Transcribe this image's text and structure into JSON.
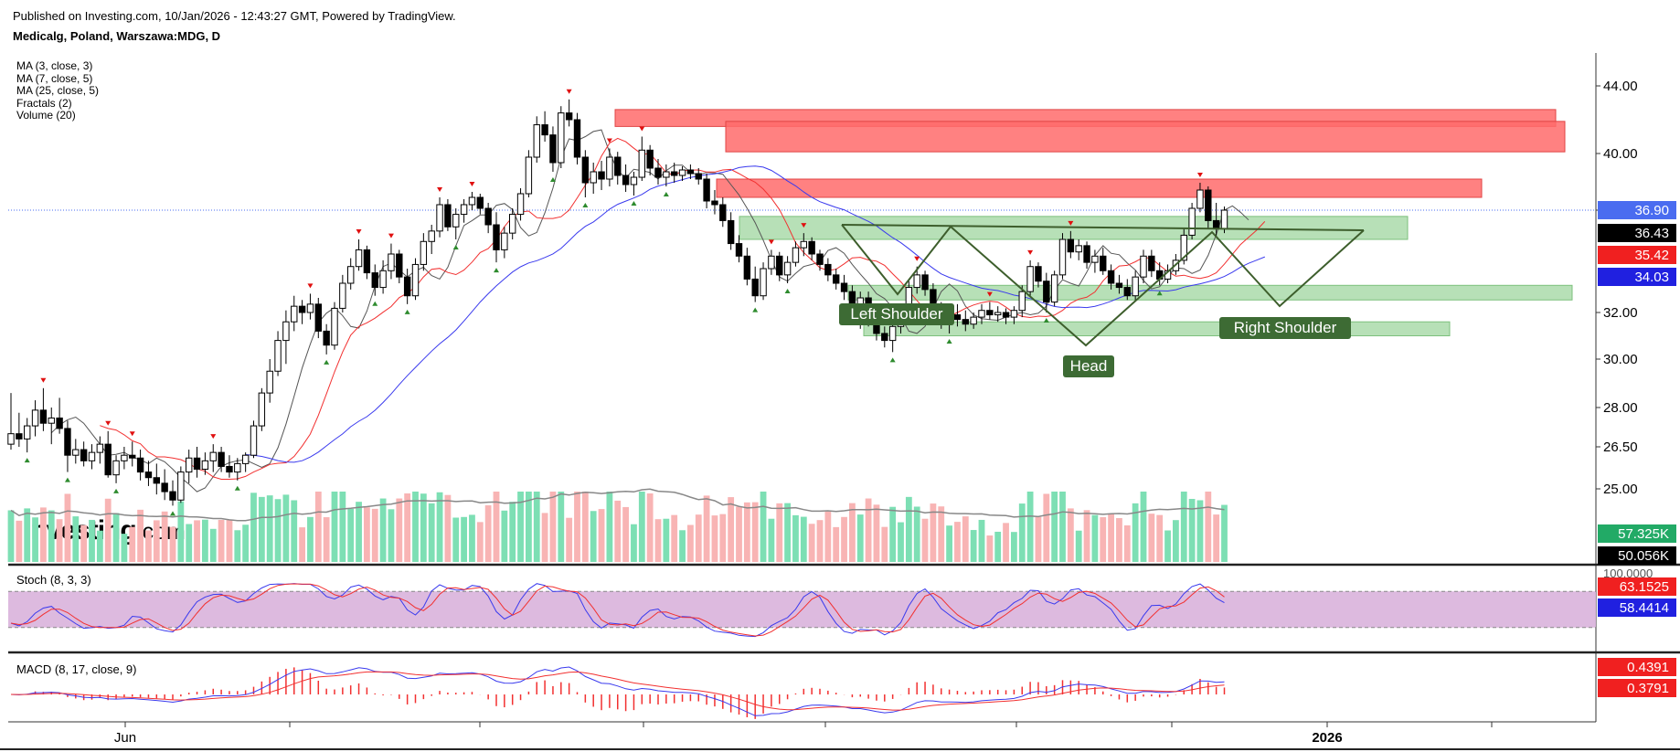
{
  "header": {
    "published": "Published on Investing.com, 10/Jan/2026 - 12:43:27 GMT, Powered by TradingView.",
    "title": "Medicalg, Poland, Warszawa:MDG, D"
  },
  "indicators": [
    "MA (3, close, 3)",
    "MA (7, close, 5)",
    "MA (25, close, 5)",
    "Fractals (2)",
    "Volume (20)"
  ],
  "logo": {
    "main": "Investing",
    "suffix": ".com"
  },
  "colors": {
    "up_candle": "#ffffff",
    "down_candle": "#000000",
    "ma3": "#555555",
    "ma7": "#f23030",
    "ma25": "#3a3aee",
    "resistance_zone": "#ff6b6b",
    "support_zone": "#9fd59f",
    "pattern_line": "#3d5e2c",
    "label_bg": "#3d6b34",
    "vol_up": "#7ddfb4",
    "vol_down": "#f8b4b4",
    "stoch_band": "#d9b3dc",
    "fractal_up": "#2e8b2e",
    "fractal_down": "#e01010"
  },
  "chart_data": [
    {
      "type": "candlestick",
      "panel": "price",
      "title": "Medicalg, Poland, Warszawa:MDG, D",
      "x_axis": {
        "labels": [
          "Jun",
          "2026"
        ]
      },
      "y_axis": {
        "ticks": [
          "44.00",
          "40.00",
          "36.90",
          "32.00",
          "30.00",
          "28.00",
          "26.50",
          "25.00"
        ]
      },
      "ohlc": [
        {
          "o": 26.6,
          "h": 28.6,
          "l": 26.4,
          "c": 27.0
        },
        {
          "o": 27.0,
          "h": 27.8,
          "l": 26.5,
          "c": 26.8
        },
        {
          "o": 26.8,
          "h": 27.6,
          "l": 26.3,
          "c": 27.3
        },
        {
          "o": 27.3,
          "h": 28.3,
          "l": 26.9,
          "c": 27.9
        },
        {
          "o": 27.9,
          "h": 28.8,
          "l": 27.1,
          "c": 27.4
        },
        {
          "o": 27.4,
          "h": 28.0,
          "l": 26.6,
          "c": 27.6
        },
        {
          "o": 27.6,
          "h": 28.4,
          "l": 27.0,
          "c": 27.2
        },
        {
          "o": 27.2,
          "h": 27.5,
          "l": 25.6,
          "c": 26.2
        },
        {
          "o": 26.2,
          "h": 26.8,
          "l": 25.9,
          "c": 26.4
        },
        {
          "o": 26.4,
          "h": 26.7,
          "l": 25.8,
          "c": 26.0
        },
        {
          "o": 26.0,
          "h": 26.6,
          "l": 25.7,
          "c": 26.3
        },
        {
          "o": 26.3,
          "h": 26.9,
          "l": 25.9,
          "c": 26.6
        },
        {
          "o": 26.6,
          "h": 27.1,
          "l": 25.4,
          "c": 25.5
        },
        {
          "o": 25.5,
          "h": 26.2,
          "l": 25.2,
          "c": 26.0
        },
        {
          "o": 26.0,
          "h": 26.5,
          "l": 25.7,
          "c": 26.2
        },
        {
          "o": 26.2,
          "h": 26.7,
          "l": 25.8,
          "c": 26.1
        },
        {
          "o": 26.1,
          "h": 26.4,
          "l": 25.3,
          "c": 25.6
        },
        {
          "o": 25.6,
          "h": 26.0,
          "l": 25.1,
          "c": 25.4
        },
        {
          "o": 25.4,
          "h": 25.9,
          "l": 24.8,
          "c": 25.2
        },
        {
          "o": 25.2,
          "h": 25.7,
          "l": 24.6,
          "c": 24.9
        },
        {
          "o": 24.9,
          "h": 25.3,
          "l": 24.4,
          "c": 24.6
        },
        {
          "o": 24.6,
          "h": 25.8,
          "l": 24.5,
          "c": 25.6
        },
        {
          "o": 25.6,
          "h": 26.4,
          "l": 25.2,
          "c": 26.1
        },
        {
          "o": 26.1,
          "h": 26.5,
          "l": 25.4,
          "c": 25.7
        },
        {
          "o": 25.7,
          "h": 26.3,
          "l": 25.5,
          "c": 26.0
        },
        {
          "o": 26.0,
          "h": 26.6,
          "l": 25.6,
          "c": 26.3
        },
        {
          "o": 26.3,
          "h": 26.5,
          "l": 25.6,
          "c": 25.8
        },
        {
          "o": 25.8,
          "h": 26.2,
          "l": 25.4,
          "c": 25.6
        },
        {
          "o": 25.6,
          "h": 26.1,
          "l": 25.3,
          "c": 25.9
        },
        {
          "o": 25.9,
          "h": 26.3,
          "l": 25.6,
          "c": 26.2
        },
        {
          "o": 26.2,
          "h": 27.5,
          "l": 26.1,
          "c": 27.3
        },
        {
          "o": 27.3,
          "h": 28.8,
          "l": 27.1,
          "c": 28.6
        },
        {
          "o": 28.6,
          "h": 30.0,
          "l": 28.2,
          "c": 29.5
        },
        {
          "o": 29.5,
          "h": 31.2,
          "l": 29.3,
          "c": 30.8
        },
        {
          "o": 30.8,
          "h": 32.1,
          "l": 29.8,
          "c": 31.6
        },
        {
          "o": 31.6,
          "h": 32.8,
          "l": 31.2,
          "c": 32.3
        },
        {
          "o": 32.3,
          "h": 32.6,
          "l": 31.5,
          "c": 32.0
        },
        {
          "o": 32.0,
          "h": 32.9,
          "l": 31.7,
          "c": 32.4
        },
        {
          "o": 32.4,
          "h": 32.7,
          "l": 30.9,
          "c": 31.2
        },
        {
          "o": 31.2,
          "h": 31.5,
          "l": 30.2,
          "c": 30.6
        },
        {
          "o": 30.6,
          "h": 32.5,
          "l": 30.4,
          "c": 32.2
        },
        {
          "o": 32.2,
          "h": 33.8,
          "l": 32.0,
          "c": 33.4
        },
        {
          "o": 33.4,
          "h": 34.6,
          "l": 33.1,
          "c": 34.2
        },
        {
          "o": 34.2,
          "h": 35.5,
          "l": 34.0,
          "c": 35.0
        },
        {
          "o": 35.0,
          "h": 35.2,
          "l": 33.6,
          "c": 33.9
        },
        {
          "o": 33.9,
          "h": 34.3,
          "l": 32.8,
          "c": 33.2
        },
        {
          "o": 33.2,
          "h": 34.5,
          "l": 32.9,
          "c": 34.0
        },
        {
          "o": 34.0,
          "h": 35.3,
          "l": 33.6,
          "c": 34.8
        },
        {
          "o": 34.8,
          "h": 35.0,
          "l": 33.4,
          "c": 33.7
        },
        {
          "o": 33.7,
          "h": 34.1,
          "l": 32.4,
          "c": 32.8
        },
        {
          "o": 32.8,
          "h": 34.6,
          "l": 32.6,
          "c": 34.3
        },
        {
          "o": 34.3,
          "h": 35.8,
          "l": 34.0,
          "c": 35.4
        },
        {
          "o": 35.4,
          "h": 36.2,
          "l": 34.8,
          "c": 35.9
        },
        {
          "o": 35.9,
          "h": 37.6,
          "l": 35.6,
          "c": 37.2
        },
        {
          "o": 37.2,
          "h": 37.5,
          "l": 35.9,
          "c": 36.1
        },
        {
          "o": 36.1,
          "h": 37.0,
          "l": 35.5,
          "c": 36.7
        },
        {
          "o": 36.7,
          "h": 37.5,
          "l": 36.3,
          "c": 37.2
        },
        {
          "o": 37.2,
          "h": 37.9,
          "l": 36.9,
          "c": 37.6
        },
        {
          "o": 37.6,
          "h": 37.8,
          "l": 36.7,
          "c": 37.0
        },
        {
          "o": 37.0,
          "h": 37.3,
          "l": 35.8,
          "c": 36.2
        },
        {
          "o": 36.2,
          "h": 36.8,
          "l": 34.4,
          "c": 35.0
        },
        {
          "o": 35.0,
          "h": 36.1,
          "l": 34.6,
          "c": 35.8
        },
        {
          "o": 35.8,
          "h": 37.0,
          "l": 35.5,
          "c": 36.7
        },
        {
          "o": 36.7,
          "h": 38.1,
          "l": 36.4,
          "c": 37.8
        },
        {
          "o": 37.8,
          "h": 40.2,
          "l": 37.6,
          "c": 39.8
        },
        {
          "o": 39.8,
          "h": 42.2,
          "l": 39.5,
          "c": 41.7
        },
        {
          "o": 41.7,
          "h": 42.5,
          "l": 40.7,
          "c": 41.1
        },
        {
          "o": 41.1,
          "h": 41.6,
          "l": 39.0,
          "c": 39.5
        },
        {
          "o": 39.5,
          "h": 42.8,
          "l": 39.2,
          "c": 42.4
        },
        {
          "o": 42.4,
          "h": 43.2,
          "l": 41.6,
          "c": 42.0
        },
        {
          "o": 42.0,
          "h": 42.4,
          "l": 39.4,
          "c": 39.8
        },
        {
          "o": 39.8,
          "h": 40.2,
          "l": 37.6,
          "c": 38.4
        },
        {
          "o": 38.4,
          "h": 39.5,
          "l": 37.8,
          "c": 39.0
        },
        {
          "o": 39.0,
          "h": 39.6,
          "l": 38.0,
          "c": 38.6
        },
        {
          "o": 38.6,
          "h": 40.3,
          "l": 38.2,
          "c": 39.8
        },
        {
          "o": 39.8,
          "h": 40.1,
          "l": 38.3,
          "c": 38.8
        },
        {
          "o": 38.8,
          "h": 39.4,
          "l": 37.9,
          "c": 38.3
        },
        {
          "o": 38.3,
          "h": 39.0,
          "l": 37.7,
          "c": 38.7
        },
        {
          "o": 38.7,
          "h": 41.0,
          "l": 38.5,
          "c": 40.2
        },
        {
          "o": 40.2,
          "h": 40.5,
          "l": 38.8,
          "c": 39.2
        },
        {
          "o": 39.2,
          "h": 39.7,
          "l": 38.3,
          "c": 38.7
        },
        {
          "o": 38.7,
          "h": 39.4,
          "l": 38.2,
          "c": 39.0
        },
        {
          "o": 39.0,
          "h": 39.5,
          "l": 38.4,
          "c": 38.8
        },
        {
          "o": 38.8,
          "h": 39.3,
          "l": 38.5,
          "c": 39.1
        },
        {
          "o": 39.1,
          "h": 39.4,
          "l": 38.6,
          "c": 38.9
        },
        {
          "o": 38.9,
          "h": 39.2,
          "l": 38.3,
          "c": 38.6
        },
        {
          "o": 38.6,
          "h": 38.9,
          "l": 37.0,
          "c": 37.4
        },
        {
          "o": 37.4,
          "h": 38.0,
          "l": 36.7,
          "c": 37.2
        },
        {
          "o": 37.2,
          "h": 37.6,
          "l": 36.1,
          "c": 36.4
        },
        {
          "o": 36.4,
          "h": 36.8,
          "l": 35.0,
          "c": 35.3
        },
        {
          "o": 35.3,
          "h": 35.7,
          "l": 34.4,
          "c": 34.7
        },
        {
          "o": 34.7,
          "h": 35.1,
          "l": 33.3,
          "c": 33.6
        },
        {
          "o": 33.6,
          "h": 34.2,
          "l": 32.5,
          "c": 32.8
        },
        {
          "o": 32.8,
          "h": 34.4,
          "l": 32.6,
          "c": 34.1
        },
        {
          "o": 34.1,
          "h": 35.0,
          "l": 33.8,
          "c": 34.7
        },
        {
          "o": 34.7,
          "h": 34.9,
          "l": 33.5,
          "c": 33.8
        },
        {
          "o": 33.8,
          "h": 34.7,
          "l": 33.4,
          "c": 34.4
        },
        {
          "o": 34.4,
          "h": 35.4,
          "l": 34.2,
          "c": 35.1
        },
        {
          "o": 35.1,
          "h": 35.8,
          "l": 34.7,
          "c": 35.4
        },
        {
          "o": 35.4,
          "h": 35.6,
          "l": 34.5,
          "c": 34.8
        },
        {
          "o": 34.8,
          "h": 35.0,
          "l": 34.0,
          "c": 34.3
        },
        {
          "o": 34.3,
          "h": 34.6,
          "l": 33.5,
          "c": 33.8
        },
        {
          "o": 33.8,
          "h": 34.1,
          "l": 33.1,
          "c": 33.4
        },
        {
          "o": 33.4,
          "h": 33.8,
          "l": 32.6,
          "c": 33.0
        },
        {
          "o": 33.0,
          "h": 33.3,
          "l": 32.0,
          "c": 32.3
        },
        {
          "o": 32.3,
          "h": 33.0,
          "l": 31.3,
          "c": 32.7
        },
        {
          "o": 32.7,
          "h": 33.0,
          "l": 31.4,
          "c": 31.7
        },
        {
          "o": 31.7,
          "h": 32.0,
          "l": 30.8,
          "c": 31.1
        },
        {
          "o": 31.1,
          "h": 31.4,
          "l": 30.5,
          "c": 30.8
        },
        {
          "o": 30.8,
          "h": 31.7,
          "l": 30.3,
          "c": 31.4
        },
        {
          "o": 31.4,
          "h": 32.3,
          "l": 31.1,
          "c": 32.0
        },
        {
          "o": 32.0,
          "h": 33.5,
          "l": 31.8,
          "c": 33.2
        },
        {
          "o": 33.2,
          "h": 34.2,
          "l": 32.9,
          "c": 33.8
        },
        {
          "o": 33.8,
          "h": 34.0,
          "l": 32.8,
          "c": 33.1
        },
        {
          "o": 33.1,
          "h": 33.4,
          "l": 31.9,
          "c": 32.2
        },
        {
          "o": 32.2,
          "h": 32.5,
          "l": 31.3,
          "c": 31.6
        },
        {
          "o": 31.6,
          "h": 32.2,
          "l": 31.1,
          "c": 31.9
        },
        {
          "o": 31.9,
          "h": 32.4,
          "l": 31.4,
          "c": 31.7
        },
        {
          "o": 31.7,
          "h": 32.1,
          "l": 31.2,
          "c": 31.5
        },
        {
          "o": 31.5,
          "h": 32.0,
          "l": 31.3,
          "c": 31.8
        },
        {
          "o": 31.8,
          "h": 32.4,
          "l": 31.5,
          "c": 32.1
        },
        {
          "o": 32.1,
          "h": 32.5,
          "l": 31.7,
          "c": 31.9
        },
        {
          "o": 31.9,
          "h": 32.3,
          "l": 31.6,
          "c": 32.0
        },
        {
          "o": 32.0,
          "h": 32.2,
          "l": 31.5,
          "c": 31.8
        },
        {
          "o": 31.8,
          "h": 32.3,
          "l": 31.5,
          "c": 32.1
        },
        {
          "o": 32.1,
          "h": 33.3,
          "l": 31.8,
          "c": 33.0
        },
        {
          "o": 33.0,
          "h": 34.5,
          "l": 32.8,
          "c": 34.2
        },
        {
          "o": 34.2,
          "h": 34.4,
          "l": 33.2,
          "c": 33.5
        },
        {
          "o": 33.5,
          "h": 33.9,
          "l": 32.0,
          "c": 32.5
        },
        {
          "o": 32.5,
          "h": 34.0,
          "l": 32.3,
          "c": 33.8
        },
        {
          "o": 33.8,
          "h": 35.8,
          "l": 33.6,
          "c": 35.5
        },
        {
          "o": 35.5,
          "h": 35.9,
          "l": 34.6,
          "c": 34.9
        },
        {
          "o": 34.9,
          "h": 35.5,
          "l": 34.5,
          "c": 35.2
        },
        {
          "o": 35.2,
          "h": 35.4,
          "l": 34.1,
          "c": 34.4
        },
        {
          "o": 34.4,
          "h": 35.0,
          "l": 33.9,
          "c": 34.7
        },
        {
          "o": 34.7,
          "h": 35.1,
          "l": 33.8,
          "c": 34.0
        },
        {
          "o": 34.0,
          "h": 34.3,
          "l": 33.1,
          "c": 33.4
        },
        {
          "o": 33.4,
          "h": 33.8,
          "l": 32.9,
          "c": 33.2
        },
        {
          "o": 33.2,
          "h": 33.6,
          "l": 32.6,
          "c": 32.8
        },
        {
          "o": 32.8,
          "h": 34.0,
          "l": 32.6,
          "c": 33.7
        },
        {
          "o": 33.7,
          "h": 35.0,
          "l": 33.4,
          "c": 34.7
        },
        {
          "o": 34.7,
          "h": 35.0,
          "l": 33.7,
          "c": 34.0
        },
        {
          "o": 34.0,
          "h": 34.4,
          "l": 33.3,
          "c": 33.6
        },
        {
          "o": 33.6,
          "h": 34.3,
          "l": 33.4,
          "c": 34.0
        },
        {
          "o": 34.0,
          "h": 34.8,
          "l": 33.8,
          "c": 34.5
        },
        {
          "o": 34.5,
          "h": 36.0,
          "l": 34.3,
          "c": 35.7
        },
        {
          "o": 35.7,
          "h": 37.3,
          "l": 35.5,
          "c": 37.0
        },
        {
          "o": 37.0,
          "h": 38.4,
          "l": 36.8,
          "c": 38.0
        },
        {
          "o": 38.0,
          "h": 38.2,
          "l": 36.0,
          "c": 36.4
        },
        {
          "o": 36.4,
          "h": 37.3,
          "l": 35.6,
          "c": 36.0
        },
        {
          "o": 36.0,
          "h": 37.1,
          "l": 35.8,
          "c": 36.9
        }
      ],
      "moving_averages": [
        {
          "name": "MA (3, close, 3)",
          "last": 36.43
        },
        {
          "name": "MA (7, close, 5)",
          "last": 35.42
        },
        {
          "name": "MA (25, close, 5)",
          "last": 34.03
        }
      ],
      "last_price": 36.9,
      "price_labels": [
        "36.90",
        "36.43",
        "35.42",
        "34.03"
      ],
      "zones": {
        "resistance": [
          [
            41.6,
            42.6
          ],
          [
            40.1,
            41.9
          ],
          [
            37.6,
            38.6
          ]
        ],
        "support": [
          [
            35.5,
            36.6
          ],
          [
            32.6,
            33.3
          ],
          [
            31.0,
            31.6
          ]
        ]
      },
      "pattern_labels": [
        "Left Shoulder",
        "Head",
        "Right Shoulder"
      ]
    },
    {
      "type": "bar",
      "panel": "volume",
      "indicator": "Volume (20)",
      "last_labels": [
        "57.325K",
        "50.056K"
      ]
    },
    {
      "type": "line",
      "panel": "stochastic",
      "title": "Stoch (8, 3, 3)",
      "ylim": [
        0,
        100
      ],
      "bands": [
        20,
        80
      ],
      "last_labels": [
        "100.0000",
        "63.1525",
        "58.4414"
      ]
    },
    {
      "type": "line",
      "panel": "macd",
      "title": "MACD (8, 17, close, 9)",
      "last_labels": [
        "0.4391",
        "0.3791"
      ]
    }
  ]
}
